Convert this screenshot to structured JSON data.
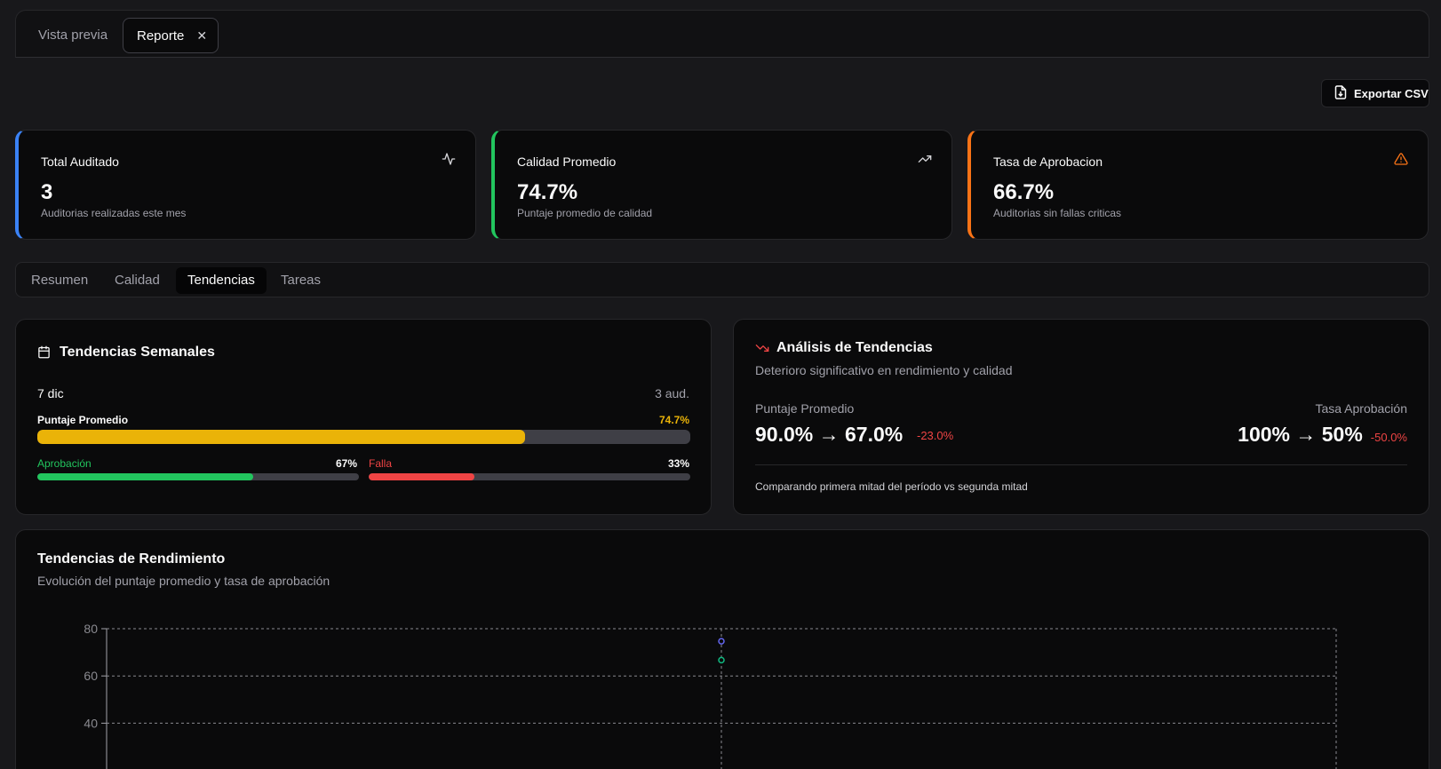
{
  "tabs": {
    "preview": "Vista previa",
    "report": "Reporte",
    "close": "✕"
  },
  "export_label": "Exportar CSV",
  "stats": [
    {
      "label": "Total Auditado",
      "value": "3",
      "sub": "Auditorias realizadas este mes",
      "color": "#3b82f6",
      "icon": "activity-icon"
    },
    {
      "label": "Calidad Promedio",
      "value": "74.7%",
      "sub": "Puntaje promedio de calidad",
      "color": "#22c55e",
      "icon": "trending-up-icon"
    },
    {
      "label": "Tasa de Aprobacion",
      "value": "66.7%",
      "sub": "Auditorias sin fallas criticas",
      "color": "#f97316",
      "icon": "warning-icon"
    }
  ],
  "subtabs": [
    "Resumen",
    "Calidad",
    "Tendencias",
    "Tareas"
  ],
  "weekly": {
    "title": "Tendencias Semanales",
    "date": "7 dic",
    "count": "3 aud.",
    "score_label": "Puntaje Promedio",
    "score_value": "74.7%",
    "score_fraction": 0.747,
    "approve_label": "Aprobación",
    "approve_value": "67%",
    "approve_fraction": 0.67,
    "fail_label": "Falla",
    "fail_value": "33%",
    "fail_fraction": 0.33
  },
  "analysis": {
    "title": "Análisis de Tendencias",
    "subtitle": "Deterioro significativo en rendimiento y calidad",
    "score_label": "Puntaje Promedio",
    "score_change": "90.0% → 67.0%",
    "score_delta": "-23.0%",
    "rate_label": "Tasa Aprobación",
    "rate_change": "100% → 50%",
    "rate_delta": "-50.0%",
    "footnote": "Comparando primera mitad del período vs segunda mitad"
  },
  "performance": {
    "title": "Tendencias de Rendimiento",
    "subtitle": "Evolución del puntaje promedio y tasa de aprobación"
  },
  "colors": {
    "score": "#6366f1",
    "approval": "#10b981",
    "accent_amber": "#eab308",
    "success": "#22c55e",
    "danger": "#ef4444"
  },
  "chart_data": {
    "type": "line",
    "y_ticks": [
      "80",
      "60",
      "40"
    ],
    "ylim": [
      0,
      80
    ],
    "grid": true,
    "series": [
      {
        "values": [
          74.7
        ]
      },
      {
        "values": [
          66.7
        ]
      }
    ]
  }
}
